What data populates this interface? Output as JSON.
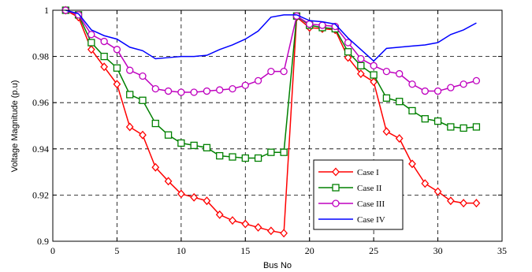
{
  "chart_data": {
    "type": "line",
    "title": "",
    "xlabel": "Bus No",
    "ylabel": "Voltage Magnitude (p.u)",
    "xlim": [
      0,
      35
    ],
    "ylim": [
      0.9,
      1.0
    ],
    "xticks": [
      0,
      5,
      10,
      15,
      20,
      25,
      30,
      35
    ],
    "yticks": [
      0.9,
      0.92,
      0.94,
      0.96,
      0.98,
      1.0
    ],
    "xtick_labels": [
      "0",
      "5",
      "10",
      "15",
      "20",
      "25",
      "30",
      "35"
    ],
    "ytick_labels": [
      "0.9",
      "0.92",
      "0.94",
      "0.96",
      "0.98",
      "1"
    ],
    "grid": true,
    "legend_position": "bottom-right",
    "x": [
      1,
      2,
      3,
      4,
      5,
      6,
      7,
      8,
      9,
      10,
      11,
      12,
      13,
      14,
      15,
      16,
      17,
      18,
      19,
      20,
      21,
      22,
      23,
      24,
      25,
      26,
      27,
      28,
      29,
      30,
      31,
      32,
      33
    ],
    "series": [
      {
        "name": "Case I",
        "color": "#ff0000",
        "marker": "diamond",
        "values": [
          1.0,
          0.997,
          0.983,
          0.9755,
          0.968,
          0.9495,
          0.946,
          0.932,
          0.926,
          0.9205,
          0.919,
          0.9175,
          0.9115,
          0.909,
          0.9075,
          0.906,
          0.9045,
          0.9035,
          0.997,
          0.9925,
          0.992,
          0.9915,
          0.9795,
          0.9725,
          0.969,
          0.9475,
          0.9445,
          0.9335,
          0.925,
          0.9215,
          0.9175,
          0.9165,
          0.9165
        ]
      },
      {
        "name": "Case II",
        "color": "#008000",
        "marker": "square",
        "values": [
          1.0,
          0.998,
          0.986,
          0.98,
          0.975,
          0.9635,
          0.961,
          0.951,
          0.946,
          0.9425,
          0.9415,
          0.9405,
          0.937,
          0.9365,
          0.936,
          0.936,
          0.9385,
          0.9385,
          0.9975,
          0.9935,
          0.9925,
          0.992,
          0.982,
          0.976,
          0.972,
          0.962,
          0.9605,
          0.9565,
          0.953,
          0.952,
          0.9495,
          0.949,
          0.9495
        ]
      },
      {
        "name": "Case III",
        "color": "#bf00bf",
        "marker": "circle",
        "values": [
          1.0,
          0.998,
          0.9895,
          0.9865,
          0.983,
          0.974,
          0.9715,
          0.966,
          0.965,
          0.9645,
          0.9645,
          0.965,
          0.9655,
          0.966,
          0.9675,
          0.9695,
          0.9735,
          0.9735,
          0.9975,
          0.994,
          0.9935,
          0.993,
          0.986,
          0.979,
          0.976,
          0.9735,
          0.9725,
          0.968,
          0.965,
          0.965,
          0.9665,
          0.968,
          0.9695
        ]
      },
      {
        "name": "Case IV",
        "color": "#0000ff",
        "marker": "none",
        "values": [
          1.0,
          0.9985,
          0.9915,
          0.989,
          0.9875,
          0.984,
          0.9825,
          0.979,
          0.9795,
          0.98,
          0.98,
          0.9805,
          0.983,
          0.985,
          0.9875,
          0.991,
          0.997,
          0.998,
          0.998,
          0.9955,
          0.995,
          0.994,
          0.988,
          0.983,
          0.978,
          0.9835,
          0.984,
          0.9845,
          0.985,
          0.986,
          0.9895,
          0.9915,
          0.9945
        ]
      }
    ]
  }
}
